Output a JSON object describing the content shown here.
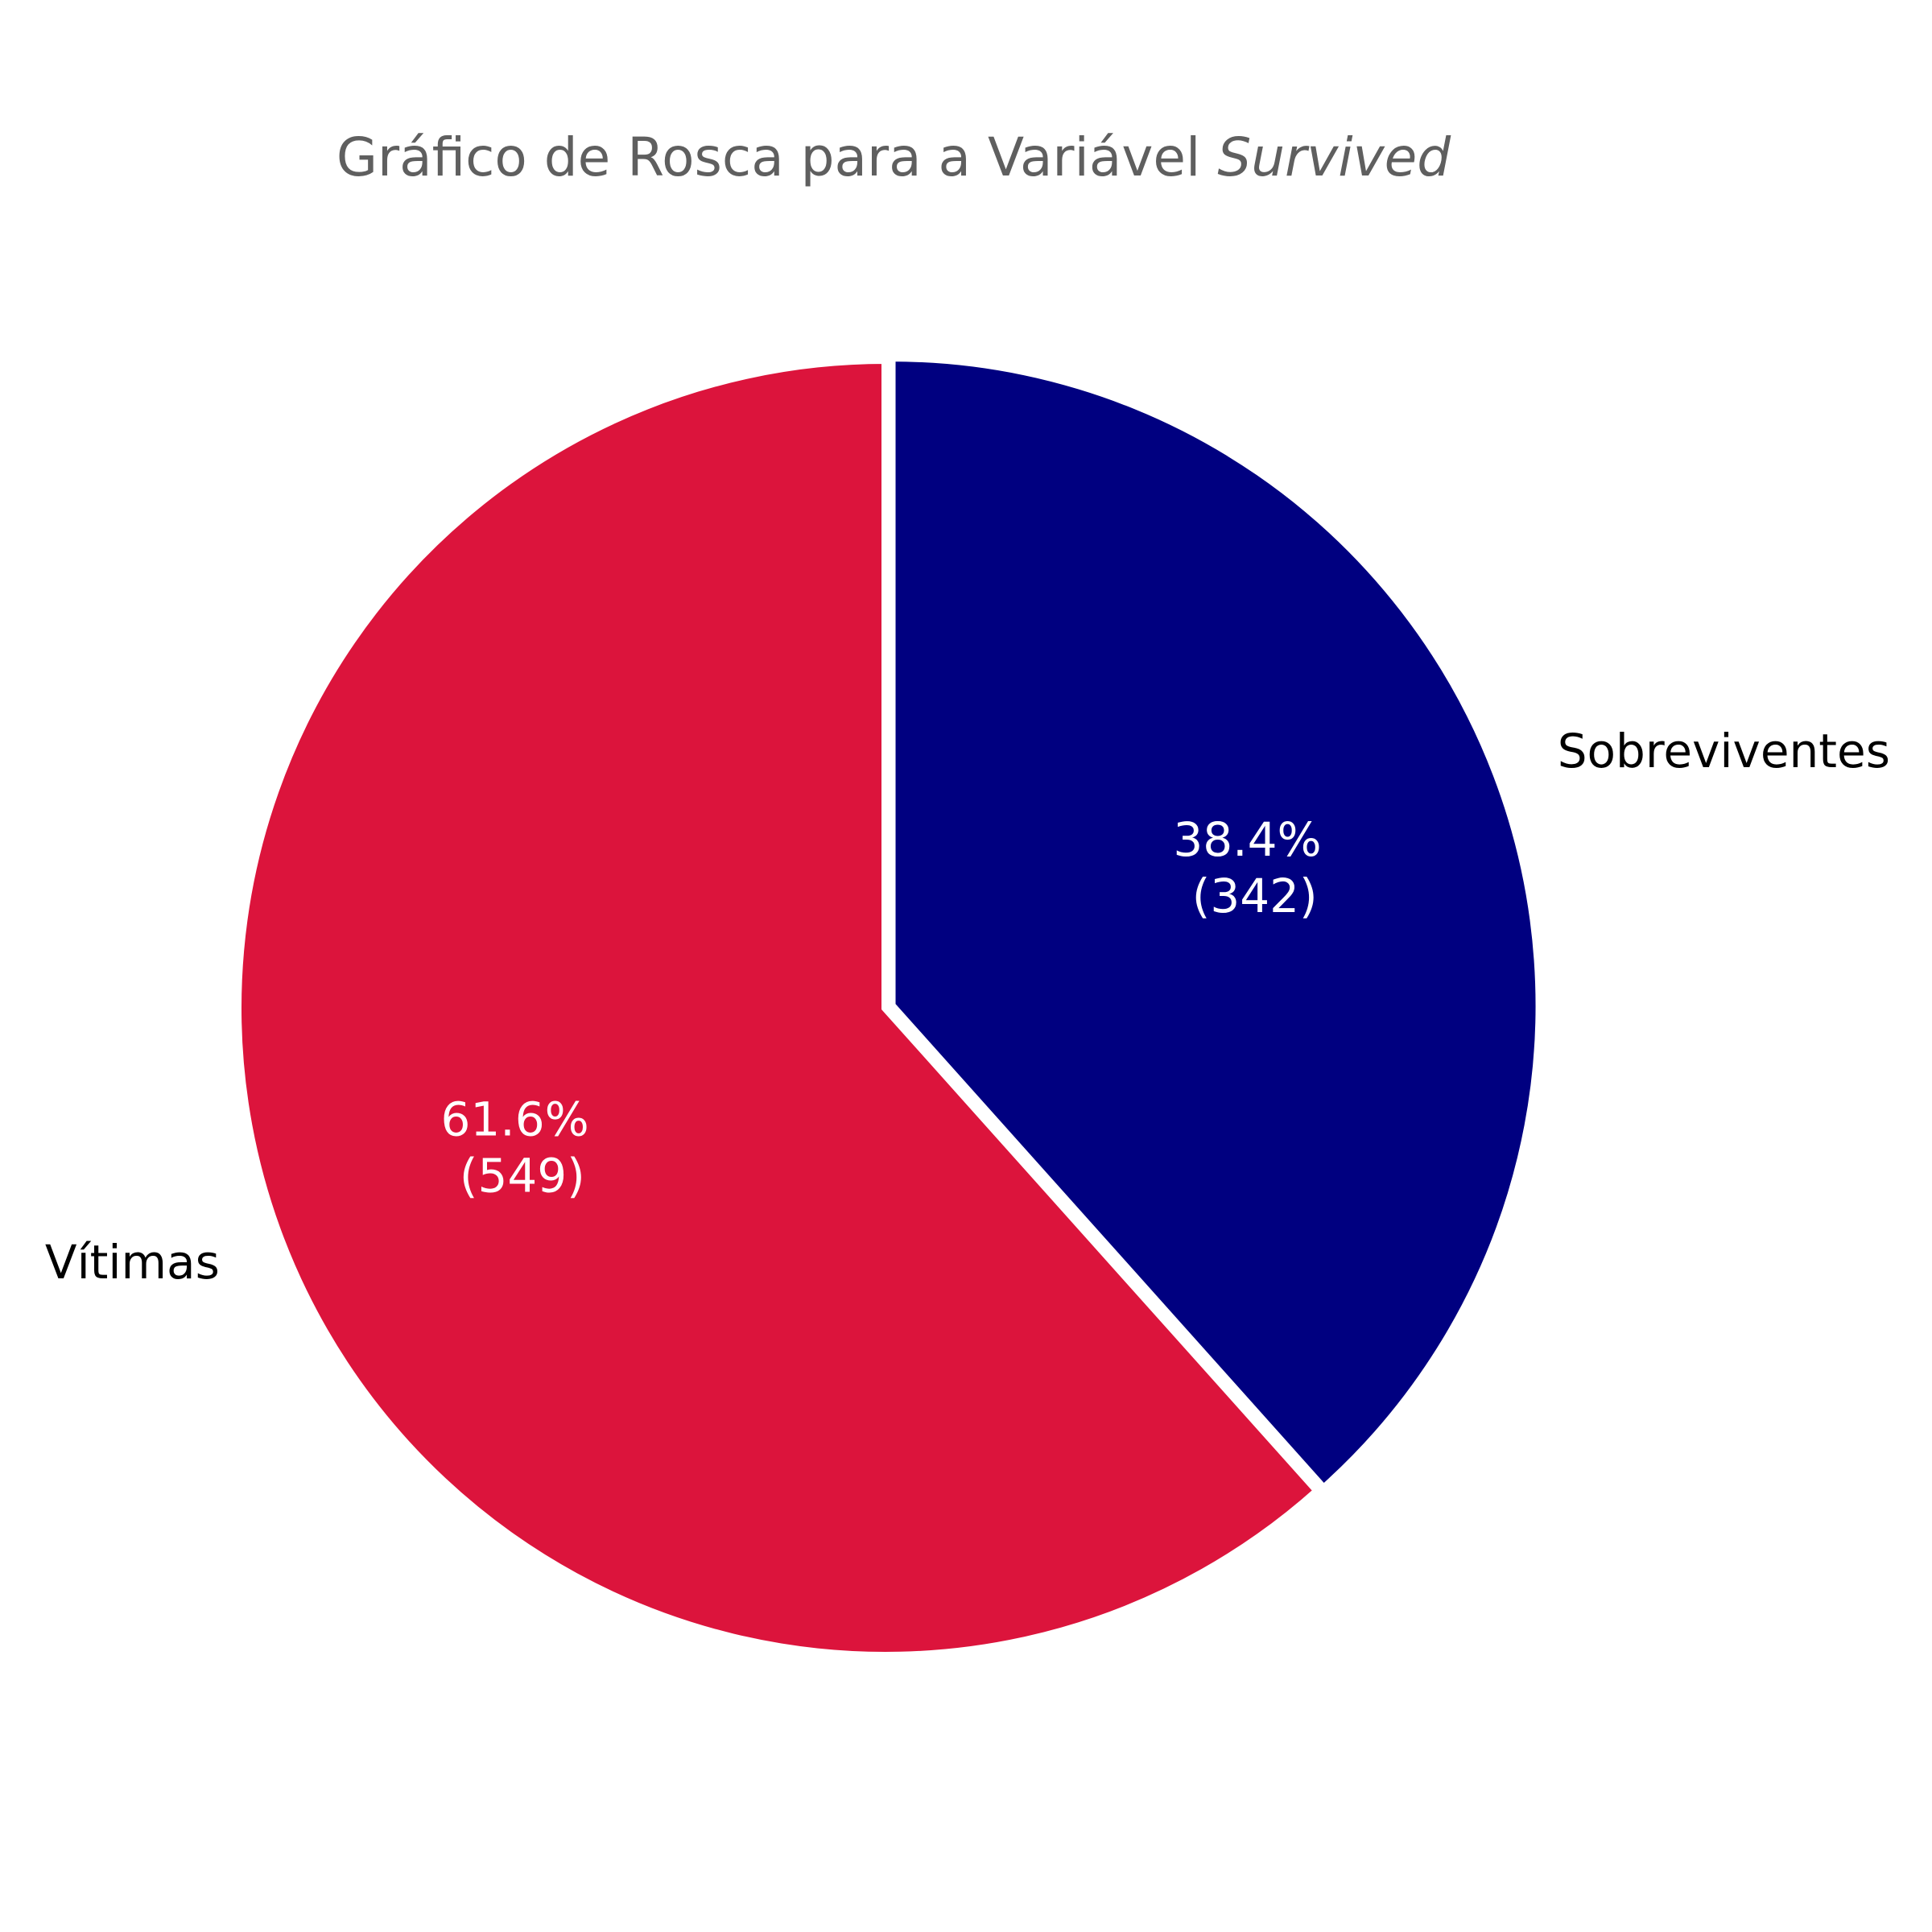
{
  "chart_data": {
    "type": "pie",
    "title": "Gráfico de Rosca para a Variável",
    "title_emphasis": "Survived",
    "slices": [
      {
        "label": "Sobreviventes",
        "value": 342,
        "percent": "38.4%",
        "count_text": "(342)",
        "color": "#000080",
        "explode": 0.01
      },
      {
        "label": "Vítimas",
        "value": 549,
        "percent": "61.6%",
        "count_text": "(549)",
        "color": "#dc143c",
        "explode": 0.0
      }
    ],
    "start_angle_deg": 90,
    "direction": "clockwise",
    "edge_color": "#ffffff",
    "title_color": "#5f5f5f"
  }
}
